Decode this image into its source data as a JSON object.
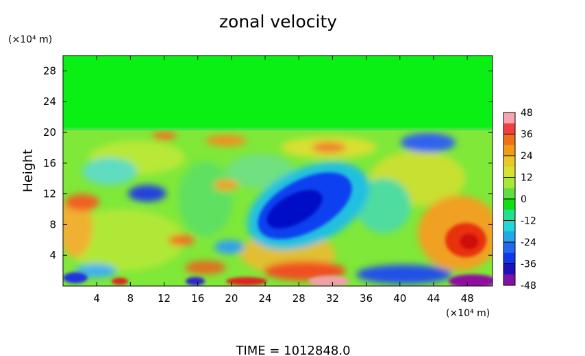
{
  "chart_data": {
    "type": "heatmap",
    "title": "zonal velocity",
    "ylabel": "Height",
    "y_unit": "(×10⁴ m)",
    "x_unit": "(×10⁴ m)",
    "xlim": [
      0,
      51
    ],
    "ylim": [
      0,
      30
    ],
    "x_ticks": [
      "4",
      "8",
      "12",
      "16",
      "20",
      "24",
      "28",
      "32",
      "36",
      "40",
      "44",
      "48"
    ],
    "x_tick_values": [
      4,
      8,
      12,
      16,
      20,
      24,
      28,
      32,
      36,
      40,
      44,
      48
    ],
    "y_ticks": [
      "4",
      "8",
      "12",
      "16",
      "20",
      "24",
      "28"
    ],
    "y_tick_values": [
      4,
      8,
      12,
      16,
      20,
      24,
      28
    ],
    "colorbar": {
      "range": [
        -48,
        48
      ],
      "ticks": [
        "48",
        "36",
        "24",
        "12",
        "0",
        "-12",
        "-24",
        "-36",
        "-48"
      ],
      "tick_values": [
        48,
        36,
        24,
        12,
        0,
        -12,
        -24,
        -36,
        -48
      ]
    },
    "footer": "TIME  =  1012848.0"
  }
}
